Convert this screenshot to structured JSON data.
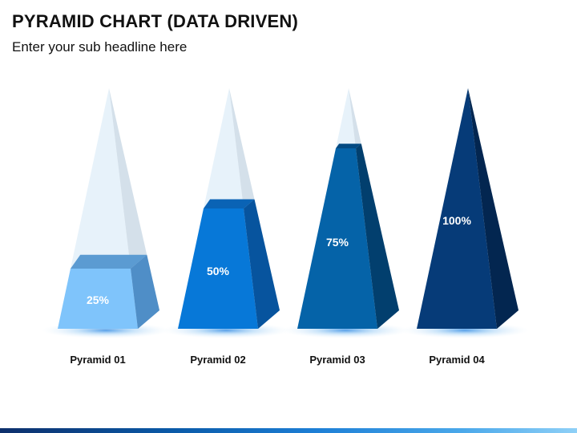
{
  "slide": {
    "title": "PYRAMID CHART (DATA DRIVEN)",
    "subtitle": "Enter your sub headline here"
  },
  "chart_data": {
    "type": "bar",
    "subtype": "pyramid",
    "title": "",
    "xlabel": "",
    "ylabel": "",
    "ylim": [
      0,
      100
    ],
    "grid": false,
    "legend": "none",
    "categories": [
      "Pyramid 01",
      "Pyramid 02",
      "Pyramid 03",
      "Pyramid 04"
    ],
    "values": [
      25,
      50,
      75,
      100
    ],
    "value_labels": [
      "25%",
      "50%",
      "75%",
      "100%"
    ],
    "colors": [
      {
        "front": "#7fc4fb",
        "side": "#4f8ec7",
        "top": "#5b9bd2",
        "label": "#ffffff"
      },
      {
        "front": "#0778d8",
        "side": "#07549e",
        "top": "#0a63b5",
        "label": "#ffffff"
      },
      {
        "front": "#0563a8",
        "side": "#023f6e",
        "top": "#034a82",
        "label": "#ffffff"
      },
      {
        "front": "#063b78",
        "side": "#032650",
        "top": "#05306a",
        "label": "#ffffff"
      }
    ],
    "ghost_colors": {
      "front": "#e4f1f9",
      "side": "#cfdde8"
    }
  }
}
